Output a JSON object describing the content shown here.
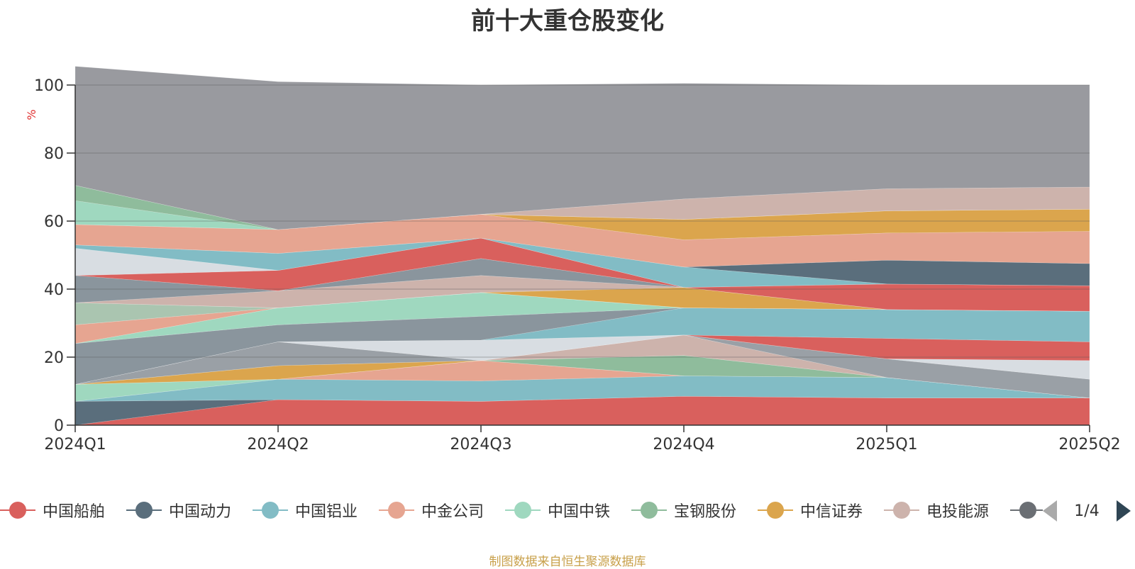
{
  "title": "前十大重仓股变化",
  "footer": "制图数据来自恒生聚源数据库",
  "pager": "1/4",
  "chart_data": {
    "type": "area",
    "stacked": true,
    "ylabel": "%",
    "ylim": [
      0,
      100
    ],
    "yticks": [
      0,
      20,
      40,
      60,
      80,
      100
    ],
    "x": [
      "2024Q1",
      "2024Q2",
      "2024Q3",
      "2024Q4",
      "2025Q1",
      "2025Q2"
    ],
    "grid": true,
    "series": [
      {
        "name": "中国船舶",
        "color": "#d9605d",
        "values": [
          0,
          7.5,
          7,
          8.5,
          8,
          8
        ]
      },
      {
        "name": "中国动力",
        "color": "#5a6e7c",
        "values": [
          7,
          0,
          0,
          0,
          0,
          0
        ]
      },
      {
        "name": "中国铝业",
        "color": "#82bcc5",
        "values": [
          0,
          6,
          6,
          6,
          6,
          0
        ]
      },
      {
        "name": "中金公司",
        "color": "#e6a591",
        "values": [
          0,
          0,
          6,
          0,
          0,
          0
        ]
      },
      {
        "name": "中国中铁",
        "color": "#9fd8bf",
        "values": [
          5,
          0,
          0,
          0,
          0,
          0
        ]
      },
      {
        "name": "宝钢股份",
        "color": "#8fbc9c",
        "values": [
          0,
          0,
          0,
          6,
          0,
          0
        ]
      },
      {
        "name": "中信证券",
        "color": "#dba54d",
        "values": [
          0,
          4,
          0,
          0,
          0,
          0
        ]
      },
      {
        "name": "电投能源",
        "color": "#cdb3ac",
        "values": [
          0,
          0,
          0,
          6,
          0,
          0
        ]
      }
    ],
    "extra_layers": [
      {
        "color": "#9aa0a6",
        "values": [
          0,
          7,
          0,
          0,
          5.5,
          5.5
        ]
      },
      {
        "color": "#d8dde2",
        "values": [
          0,
          0,
          6,
          0,
          0,
          5.5
        ]
      },
      {
        "color": "#d9605d",
        "values": [
          0,
          0,
          0,
          0,
          6,
          5.5
        ]
      },
      {
        "color": "#82bcc5",
        "values": [
          0,
          0,
          0,
          8,
          8.5,
          9
        ]
      },
      {
        "color": "#8a959d",
        "values": [
          12,
          5,
          7,
          0,
          0,
          0
        ]
      },
      {
        "color": "#9fd8bf",
        "values": [
          0,
          5,
          7,
          0,
          0,
          0
        ]
      },
      {
        "color": "#e6a591",
        "values": [
          5.5,
          0,
          0,
          0,
          0,
          0
        ]
      },
      {
        "color": "#aac5b0",
        "values": [
          6.5,
          0,
          0,
          0,
          0,
          0
        ]
      },
      {
        "color": "#dba54d",
        "values": [
          0,
          0,
          0,
          6,
          0,
          0
        ]
      },
      {
        "color": "#cdb3ac",
        "values": [
          0,
          5,
          5,
          0,
          0,
          0
        ]
      },
      {
        "color": "#8a959d",
        "values": [
          8,
          0,
          5,
          0,
          0,
          0
        ]
      },
      {
        "color": "#d9605d",
        "values": [
          0,
          6,
          6,
          0,
          7.5,
          7.5
        ]
      },
      {
        "color": "#d8dde2",
        "values": [
          8,
          0,
          0,
          0,
          0,
          0
        ]
      },
      {
        "color": "#82bcc5",
        "values": [
          1,
          5,
          0,
          6,
          0,
          0
        ]
      },
      {
        "color": "#5a6e7c",
        "values": [
          0,
          0,
          0,
          0,
          7,
          6.5
        ]
      },
      {
        "color": "#e6a591",
        "values": [
          6,
          7,
          7,
          8,
          8,
          9.5
        ]
      },
      {
        "color": "#dba54d",
        "values": [
          0,
          0,
          0,
          6,
          6.5,
          6.5
        ]
      },
      {
        "color": "#9fd8bf",
        "values": [
          7,
          0,
          0,
          0,
          0,
          0
        ]
      },
      {
        "color": "#8fbc9c",
        "values": [
          4.5,
          0,
          0,
          0,
          0,
          0
        ]
      },
      {
        "color": "#cdb3ac",
        "values": [
          0,
          0,
          0,
          6,
          6.5,
          6.5
        ]
      },
      {
        "color": "#999a9f",
        "values": [
          35,
          43.5,
          38,
          34,
          30.5,
          30
        ]
      }
    ]
  }
}
